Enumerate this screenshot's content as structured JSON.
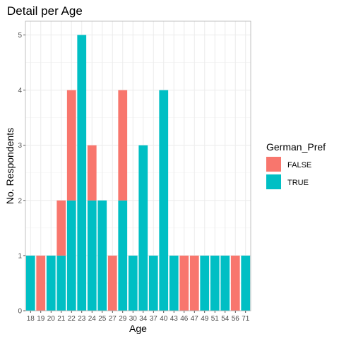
{
  "chart_data": {
    "type": "bar",
    "stacked": true,
    "title": "Detail per Age",
    "xlabel": "Age",
    "ylabel": "No. Respondents",
    "categories": [
      "18",
      "19",
      "20",
      "21",
      "22",
      "23",
      "24",
      "25",
      "27",
      "29",
      "30",
      "34",
      "37",
      "40",
      "43",
      "46",
      "47",
      "49",
      "51",
      "54",
      "56",
      "71"
    ],
    "series": [
      {
        "name": "FALSE",
        "color": "#F8766D",
        "values": [
          0,
          1,
          0,
          1,
          2,
          0,
          1,
          0,
          1,
          2,
          0,
          0,
          0,
          0,
          0,
          1,
          1,
          0,
          0,
          0,
          1,
          0
        ]
      },
      {
        "name": "TRUE",
        "color": "#00BFC4",
        "values": [
          1,
          0,
          1,
          1,
          2,
          5,
          2,
          2,
          0,
          2,
          1,
          3,
          1,
          4,
          1,
          0,
          0,
          1,
          1,
          1,
          0,
          1
        ]
      }
    ],
    "stack_order": [
      "TRUE",
      "FALSE"
    ],
    "ylim": [
      0,
      5.25
    ],
    "yticks": [
      0,
      1,
      2,
      3,
      4,
      5
    ],
    "grid": true,
    "legend": {
      "title": "German_Pref",
      "position": "right"
    }
  }
}
